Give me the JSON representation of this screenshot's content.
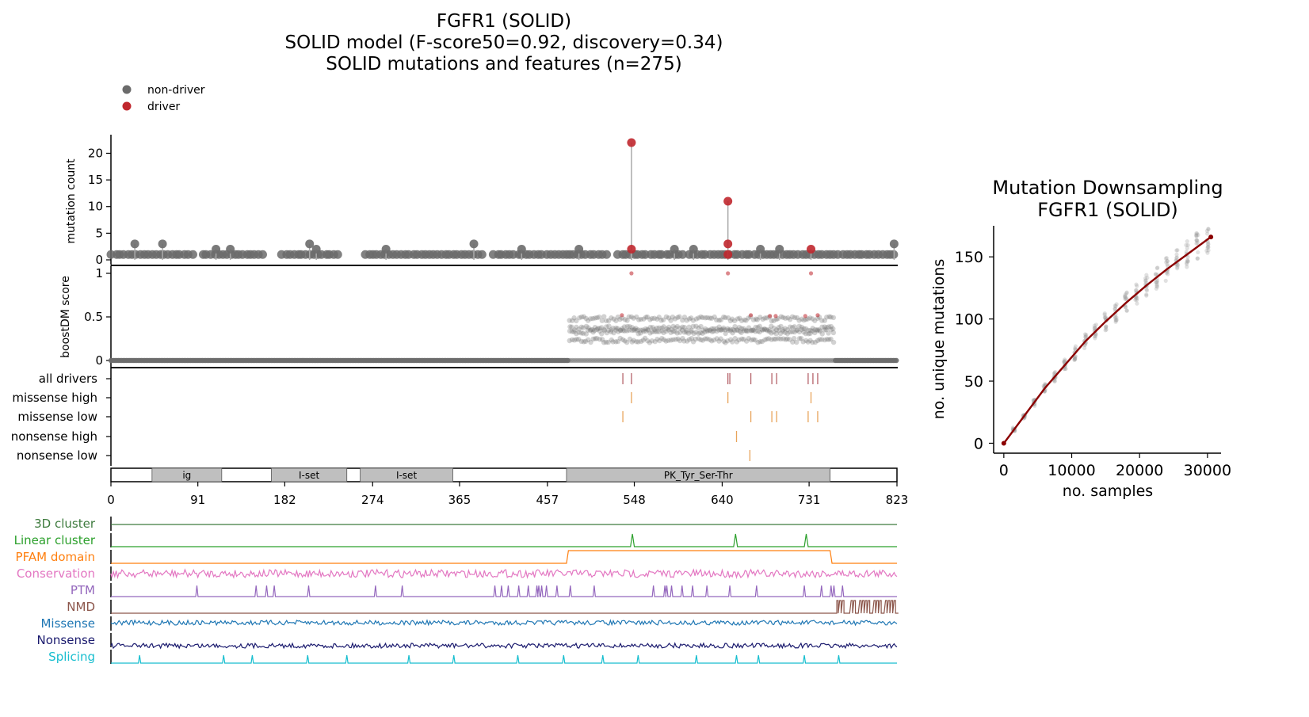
{
  "titles": {
    "main": [
      "FGFR1 (SOLID)",
      "SOLID model (F-score50=0.92, discovery=0.34)",
      "SOLID mutations and features (n=275)"
    ],
    "right": [
      "Mutation Downsampling",
      "FGFR1 (SOLID)"
    ]
  },
  "legend": {
    "items": [
      {
        "label": "non-driver",
        "color": "#6b6b6b"
      },
      {
        "label": "driver",
        "color": "#c0272d"
      }
    ]
  },
  "colors": {
    "non_driver": "#6b6b6b",
    "driver": "#c0272d",
    "stem": "#aaaaaa",
    "domain_fill": "#bfbfbf",
    "driver_tick": "#b5636a",
    "missense_tick": "#e8a45b",
    "nonsense_tick": "#e8a45b",
    "downsampling_line": "#8b0000"
  },
  "chart_data": [
    {
      "type": "scatter",
      "subtype": "lollipop",
      "ylabel": "mutation count",
      "xlim": [
        0,
        823
      ],
      "ylim": [
        0,
        22
      ],
      "yticks": [
        0,
        5,
        10,
        15,
        20
      ],
      "highlight": [
        {
          "x": 545,
          "y": 22,
          "driver": true
        },
        {
          "x": 545,
          "y": 2,
          "driver": true
        },
        {
          "x": 646,
          "y": 11,
          "driver": true
        },
        {
          "x": 646,
          "y": 3,
          "driver": true
        },
        {
          "x": 646,
          "y": 1,
          "driver": true
        },
        {
          "x": 733,
          "y": 2,
          "driver": true
        },
        {
          "x": 25,
          "y": 3,
          "driver": false
        },
        {
          "x": 54,
          "y": 3,
          "driver": false
        },
        {
          "x": 110,
          "y": 2,
          "driver": false
        },
        {
          "x": 125,
          "y": 2,
          "driver": false
        },
        {
          "x": 208,
          "y": 3,
          "driver": false
        },
        {
          "x": 215,
          "y": 2,
          "driver": false
        },
        {
          "x": 288,
          "y": 2,
          "driver": false
        },
        {
          "x": 380,
          "y": 3,
          "driver": false
        },
        {
          "x": 430,
          "y": 2,
          "driver": false
        },
        {
          "x": 490,
          "y": 2,
          "driver": false
        },
        {
          "x": 590,
          "y": 2,
          "driver": false
        },
        {
          "x": 610,
          "y": 2,
          "driver": false
        },
        {
          "x": 680,
          "y": 2,
          "driver": false
        },
        {
          "x": 700,
          "y": 2,
          "driver": false
        },
        {
          "x": 820,
          "y": 3,
          "driver": false
        }
      ],
      "baseline_segments": [
        [
          0,
          85
        ],
        [
          95,
          160
        ],
        [
          178,
          240
        ],
        [
          265,
          390
        ],
        [
          400,
          520
        ],
        [
          530,
          600
        ],
        [
          605,
          823
        ]
      ]
    },
    {
      "type": "scatter",
      "ylabel": "boostDM score",
      "xlim": [
        0,
        823
      ],
      "ylim": [
        0,
        1
      ],
      "yticks": [
        0,
        0.5,
        1
      ],
      "ytick_labels": [
        "0",
        "0.5",
        "1"
      ],
      "baseline_score": 0.0,
      "kinase_region": [
        480,
        757
      ],
      "kinase_score_bands": [
        0.23,
        0.33,
        0.37,
        0.48
      ],
      "driver_points": [
        {
          "x": 545,
          "y": 1.0
        },
        {
          "x": 646,
          "y": 1.0
        },
        {
          "x": 733,
          "y": 1.0
        },
        {
          "x": 535,
          "y": 0.52
        },
        {
          "x": 670,
          "y": 0.52
        },
        {
          "x": 690,
          "y": 0.51
        },
        {
          "x": 696,
          "y": 0.51
        },
        {
          "x": 727,
          "y": 0.51
        },
        {
          "x": 740,
          "y": 0.52
        }
      ]
    },
    {
      "type": "table",
      "rows": [
        "all drivers",
        "missense high",
        "missense low",
        "nonsense high",
        "nonsense low"
      ],
      "ticks": {
        "all drivers": [
          536,
          545,
          646,
          648,
          670,
          692,
          697,
          730,
          735,
          740
        ],
        "missense high": [
          545,
          646,
          733
        ],
        "missense low": [
          536,
          670,
          692,
          697,
          730,
          740
        ],
        "nonsense high": [
          655
        ],
        "nonsense low": [
          669
        ]
      },
      "xlim": [
        0,
        823
      ]
    },
    {
      "type": "bar",
      "subtype": "protein domains",
      "xlim": [
        0,
        823
      ],
      "xticks": [
        0,
        91,
        182,
        274,
        365,
        457,
        548,
        640,
        731,
        823
      ],
      "domains": [
        {
          "name": "ig",
          "start": 43,
          "end": 116
        },
        {
          "name": "I-set",
          "start": 168,
          "end": 247
        },
        {
          "name": "I-set",
          "start": 261,
          "end": 358
        },
        {
          "name": "PK_Tyr_Ser-Thr",
          "start": 477,
          "end": 753
        }
      ]
    },
    {
      "type": "line",
      "subtype": "feature tracks",
      "xlim": [
        0,
        823
      ],
      "tracks": [
        {
          "name": "3D cluster",
          "color": "#3d7a3d"
        },
        {
          "name": "Linear cluster",
          "color": "#2ca02c",
          "peaks": [
            546,
            654,
            728
          ]
        },
        {
          "name": "PFAM domain",
          "color": "#ff7f0e",
          "step": [
            477,
            753
          ]
        },
        {
          "name": "Conservation",
          "color": "#e377c2"
        },
        {
          "name": "PTM",
          "color": "#9467bd",
          "peaks": [
            90,
            152,
            163,
            171,
            207,
            277,
            305,
            402,
            409,
            416,
            427,
            437,
            446,
            448,
            451,
            456,
            467,
            481,
            506,
            568,
            580,
            582,
            587,
            598,
            609,
            624,
            648,
            676,
            726,
            744,
            754,
            757,
            766
          ]
        },
        {
          "name": "NMD",
          "color": "#8c564b",
          "nmd_start": 760
        },
        {
          "name": "Missense",
          "color": "#1f77b4"
        },
        {
          "name": "Nonsense",
          "color": "#1a1a6e"
        },
        {
          "name": "Splicing",
          "color": "#17becf",
          "peaks": [
            30,
            118,
            148,
            206,
            247,
            312,
            359,
            426,
            474,
            515,
            552,
            613,
            655,
            678,
            726,
            762
          ]
        }
      ]
    },
    {
      "type": "scatter",
      "title": "Mutation Downsampling FGFR1 (SOLID)",
      "xlabel": "no. samples",
      "ylabel": "no. unique mutations",
      "xlim": [
        -1500,
        32000
      ],
      "ylim": [
        -8,
        175
      ],
      "xticks": [
        0,
        10000,
        20000,
        30000
      ],
      "yticks": [
        0,
        50,
        100,
        150
      ],
      "line": {
        "x": [
          0,
          3000,
          6000,
          9000,
          12000,
          15000,
          18000,
          21000,
          24000,
          27000,
          30500
        ],
        "y": [
          0,
          22,
          44,
          63,
          82,
          98,
          113,
          127,
          140,
          152,
          166
        ]
      },
      "sample_x": [
        1500,
        3000,
        4500,
        6000,
        7500,
        9000,
        10500,
        12000,
        13500,
        15000,
        16500,
        18000,
        19500,
        21000,
        22500,
        24000,
        25500,
        27000,
        28500,
        30000
      ]
    }
  ]
}
